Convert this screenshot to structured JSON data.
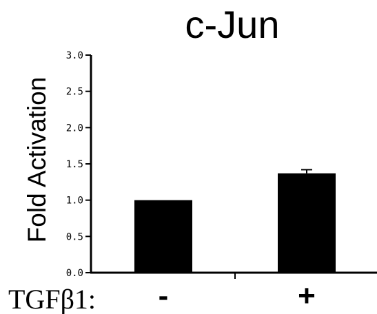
{
  "chart_data": {
    "type": "bar",
    "title": "c-Jun",
    "ylabel": "Fold Activation",
    "xlabel": "TGFβ1:",
    "categories": [
      "-",
      "+"
    ],
    "values": [
      1.0,
      1.37
    ],
    "errors": [
      0.0,
      0.05
    ],
    "ylim": [
      0,
      3.0
    ],
    "yticks": [
      "0.0",
      "0.5",
      "1.0",
      "1.5",
      "2.0",
      "2.5",
      "3.0"
    ],
    "bar_color": "#000000",
    "grid": false,
    "legend": "none"
  }
}
